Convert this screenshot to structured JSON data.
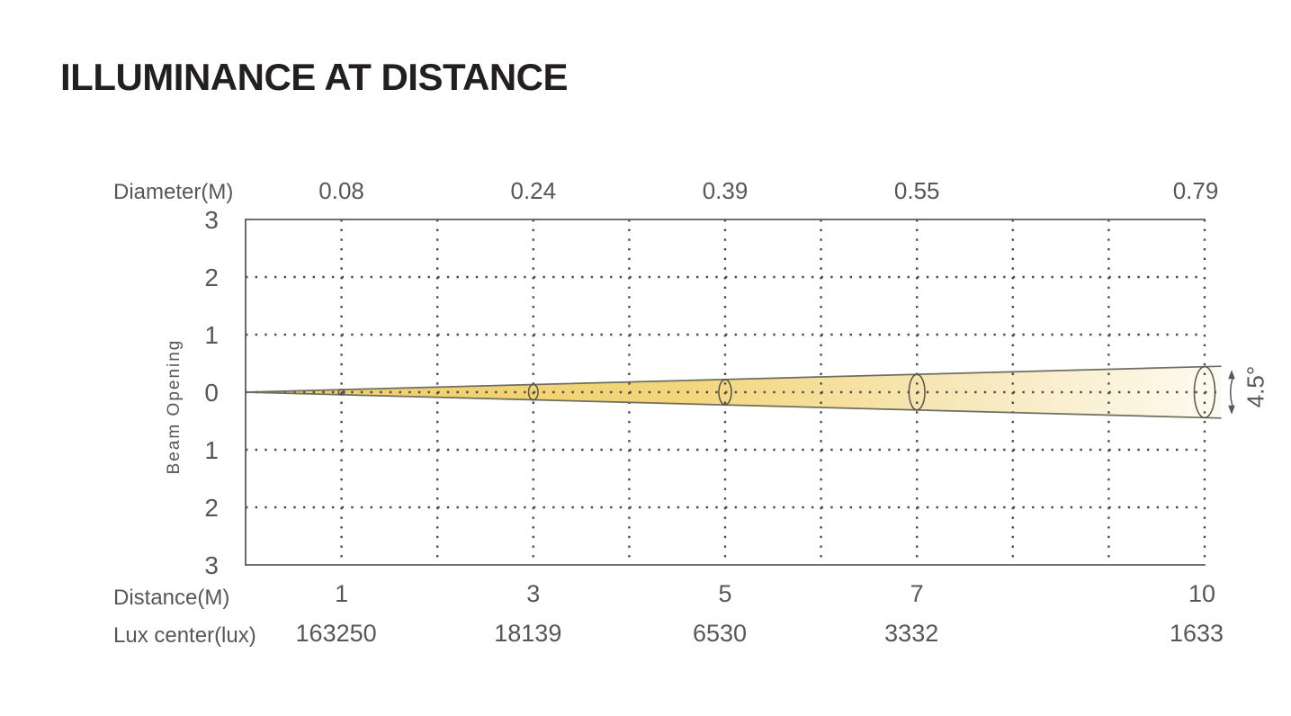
{
  "page": {
    "title": "ILLUMINANCE AT DISTANCE"
  },
  "chart_data": {
    "type": "area",
    "subtype": "beam-cone-diagram",
    "title": "ILLUMINANCE AT DISTANCE",
    "beam_angle": "4.5°",
    "axes": {
      "top_label": "Diameter(M)",
      "left_label": "Beam Opening",
      "bottom_label": "Distance(M)",
      "lux_label": "Lux center(lux)",
      "x_range": [
        0,
        10
      ],
      "y_range": [
        -3,
        3
      ],
      "y_tick_labels": [
        "3",
        "2",
        "1",
        "0",
        "1",
        "2",
        "3"
      ],
      "grid": "dotted",
      "grid_step_x": 1,
      "grid_step_y": 1
    },
    "points": [
      {
        "distance": 1,
        "diameter": 0.08,
        "lux_center": 163250
      },
      {
        "distance": 3,
        "diameter": 0.24,
        "lux_center": 18139
      },
      {
        "distance": 5,
        "diameter": 0.39,
        "lux_center": 6530
      },
      {
        "distance": 7,
        "diameter": 0.55,
        "lux_center": 3332
      },
      {
        "distance": 10,
        "diameter": 0.79,
        "lux_center": 1633
      }
    ],
    "colors": {
      "beam_fill_start": "#efcd68",
      "beam_fill_mid": "#f3d67b",
      "beam_fill_pale": "#f7e7b7",
      "beam_fill_end": "#fdfbf0",
      "beam_outline": "#6e6e60",
      "grid_dots": "#4b4b4b",
      "plot_border": "#5a5b5d",
      "ellipse_stroke": "#55544a",
      "text": "#56575b",
      "title_text": "#231f20"
    }
  }
}
